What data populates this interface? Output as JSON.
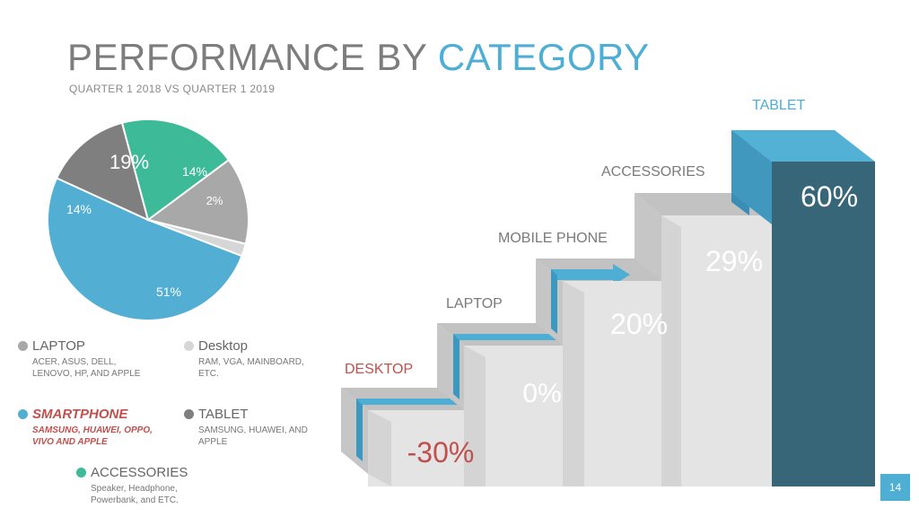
{
  "title": {
    "main": "PERFORMANCE BY",
    "accent": "CATEGORY"
  },
  "subtitle": "QUARTER 1 2018 VS QUARTER 1 2019",
  "page_number": "14",
  "colors": {
    "accent": "#4eaed3",
    "teal": "#3dbb98",
    "negative": "#c0504d",
    "dark_blue": "#376678"
  },
  "chart_data": [
    {
      "type": "pie",
      "slices": [
        {
          "label": "51%",
          "value": 51,
          "category": "SMARTPHONE",
          "color": "#52aed2"
        },
        {
          "label": "14%",
          "value": 14,
          "category": "TABLET",
          "color": "#7f7f7f"
        },
        {
          "label": "19%",
          "value": 19,
          "category": "ACCESSORIES",
          "color": "#3dbb98"
        },
        {
          "label": "14%",
          "value": 14,
          "category": "LAPTOP",
          "color": "#a8a8a8"
        },
        {
          "label": "2%",
          "value": 2,
          "category": "Desktop",
          "color": "#d6d6d6"
        }
      ]
    },
    {
      "type": "bar",
      "categories": [
        "DESKTOP",
        "LAPTOP",
        "MOBILE PHONE",
        "ACCESSORIES",
        "TABLET"
      ],
      "values": [
        -30,
        0,
        20,
        29,
        60
      ],
      "labels": [
        "-30%",
        "0%",
        "20%",
        "29%",
        "60%"
      ]
    }
  ],
  "legend": [
    {
      "name": "LAPTOP",
      "desc": "ACER, ASUS, DELL, LENOVO, HP, AND APPLE",
      "color": "#a8a8a8"
    },
    {
      "name": "Desktop",
      "desc": "RAM, VGA, MAINBOARD, ETC.",
      "color": "#d6d6d6"
    },
    {
      "name": "SMARTPHONE",
      "desc": "SAMSUNG, HUAWEI, OPPO, VIVO AND APPLE",
      "color": "#52aed2"
    },
    {
      "name": "TABLET",
      "desc": "SAMSUNG, HUAWEI, AND APPLE",
      "color": "#7f7f7f"
    },
    {
      "name": "ACCESSORIES",
      "desc": "Speaker, Headphone, Powerbank, and ETC.",
      "color": "#3dbb98"
    }
  ]
}
